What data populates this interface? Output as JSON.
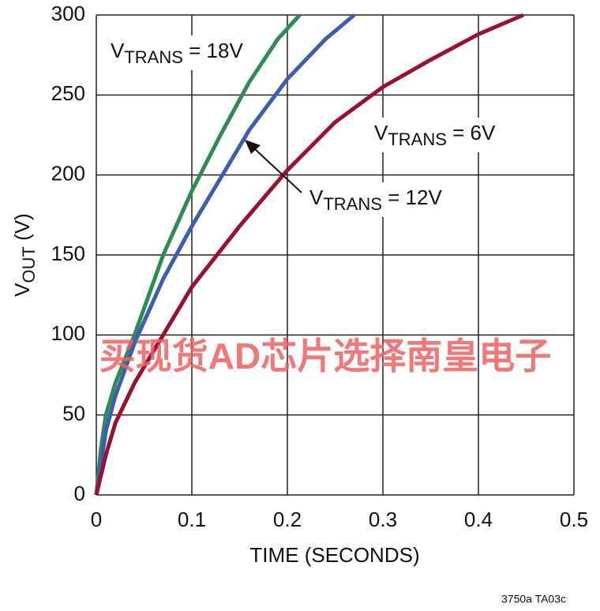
{
  "chart_data": {
    "type": "line",
    "x_label": "TIME (SECONDS)",
    "y_label": {
      "main": "V",
      "sub": "OUT",
      "rest": " (V)"
    },
    "xlim": [
      0,
      0.5
    ],
    "xticks": [
      0,
      0.1,
      0.2,
      0.3,
      0.4,
      0.5
    ],
    "ylim": [
      0,
      300
    ],
    "yticks": [
      0,
      50,
      100,
      150,
      200,
      250,
      300
    ],
    "grid": true,
    "series": [
      {
        "color": "#2e8b57",
        "label": {
          "main": "V",
          "sub": "TRANS",
          "rest": " = 18V"
        },
        "x": [
          0,
          0.005,
          0.01,
          0.02,
          0.04,
          0.07,
          0.1,
          0.13,
          0.16,
          0.19,
          0.213
        ],
        "values": [
          0,
          30,
          50,
          70,
          100,
          150,
          190,
          225,
          258,
          285,
          300
        ]
      },
      {
        "color": "#3a5fb0",
        "label": {
          "main": "V",
          "sub": "TRANS",
          "rest": " = 12V"
        },
        "x": [
          0,
          0.01,
          0.02,
          0.04,
          0.07,
          0.1,
          0.13,
          0.16,
          0.2,
          0.24,
          0.27
        ],
        "values": [
          0,
          40,
          62,
          95,
          135,
          168,
          198,
          228,
          260,
          285,
          300
        ]
      },
      {
        "color": "#9b1030",
        "label": {
          "main": "V",
          "sub": "TRANS",
          "rest": " = 6V"
        },
        "x": [
          0,
          0.01,
          0.02,
          0.04,
          0.07,
          0.1,
          0.15,
          0.2,
          0.25,
          0.3,
          0.35,
          0.4,
          0.447
        ],
        "values": [
          0,
          25,
          45,
          70,
          100,
          130,
          168,
          203,
          233,
          255,
          272,
          288,
          300
        ]
      }
    ],
    "watermark": "买现货AD芯片选择南皇电子",
    "footnote": "3750a TA03c"
  }
}
